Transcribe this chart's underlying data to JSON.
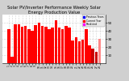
{
  "title": "Solar PV/Inverter Performance Weekly Solar Energy Production Value",
  "bar_values": [
    42,
    8,
    48,
    48,
    45,
    46,
    42,
    40,
    47,
    50,
    46,
    45,
    42,
    44,
    53,
    44,
    42,
    46,
    44,
    28,
    32,
    27,
    29,
    42,
    22,
    18,
    14,
    30
  ],
  "bar_colors_list": [
    "#ff0000",
    "#ff0000",
    "#ff0000",
    "#ff0000",
    "#ff0000",
    "#ff0000",
    "#ff0000",
    "#ff0000",
    "#ff0000",
    "#ff0000",
    "#ff0000",
    "#ff0000",
    "#ff0000",
    "#ff0000",
    "#ff0000",
    "#ff0000",
    "#ff0000",
    "#ff0000",
    "#ff0000",
    "#ff0000",
    "#ff0000",
    "#ff0000",
    "#ff0000",
    "#ff0000",
    "#ff0000",
    "#cc0000",
    "#cc0000",
    "#ff8888"
  ],
  "ylim": [
    0,
    60
  ],
  "yticks": [
    10,
    20,
    30,
    40,
    50
  ],
  "bg_color": "#d0d0d0",
  "plot_bg": "#ffffff",
  "grid_color": "#aaaaaa",
  "title_fontsize": 3.8,
  "legend_labels": [
    "Previous Years",
    "Current Year",
    "Predicted"
  ],
  "legend_colors": [
    "#0000ff",
    "#ff0000",
    "#ff00ff"
  ]
}
